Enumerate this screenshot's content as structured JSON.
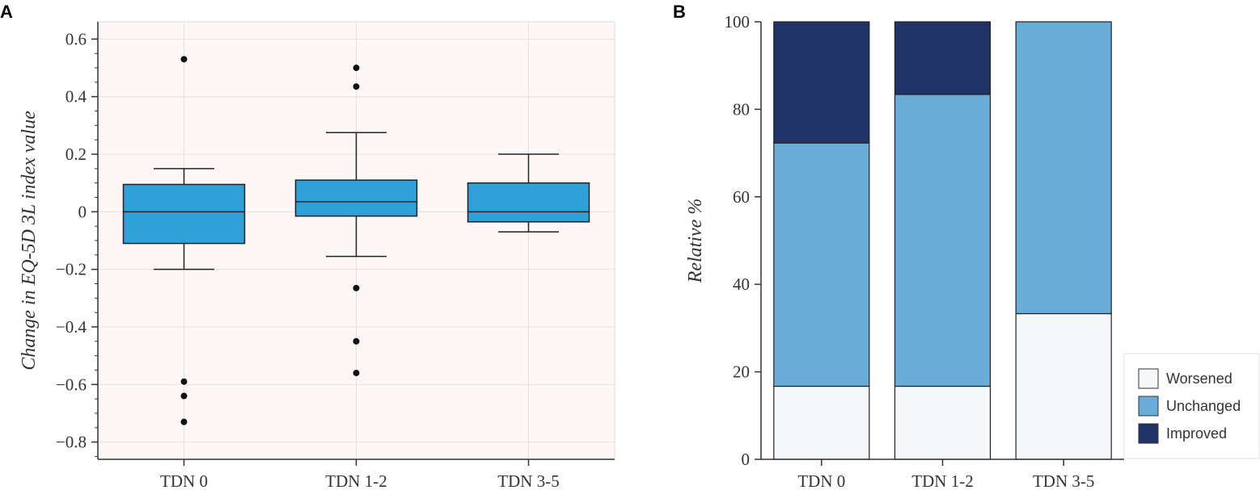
{
  "chart_data": [
    {
      "panel": "A",
      "type": "box",
      "title": "",
      "xlabel": "",
      "ylabel": "Change in EQ-5D 3L index value",
      "ylim": [
        -0.86,
        0.66
      ],
      "yticks": [
        0.6,
        0.4,
        0.2,
        0,
        -0.2,
        -0.4,
        -0.6,
        -0.8
      ],
      "ytick_labels": [
        "0.6",
        "0.4",
        "0.2",
        "0",
        "−0.2",
        "−0.4",
        "−0.6",
        "−0.8"
      ],
      "categories": [
        "TDN 0",
        "TDN 1-2",
        "TDN 3-5"
      ],
      "box_color": "#2fa0d8",
      "plot_bg": "#fdf7f7",
      "boxes": [
        {
          "category": "TDN 0",
          "whisker_low": -0.2,
          "q1": -0.11,
          "median": 0.0,
          "q3": 0.095,
          "whisker_high": 0.15,
          "outliers": [
            0.53,
            -0.59,
            -0.64,
            -0.73
          ]
        },
        {
          "category": "TDN 1-2",
          "whisker_low": -0.155,
          "q1": -0.015,
          "median": 0.035,
          "q3": 0.11,
          "whisker_high": 0.275,
          "outliers": [
            0.5,
            0.435,
            -0.265,
            -0.45,
            -0.56
          ]
        },
        {
          "category": "TDN 3-5",
          "whisker_low": -0.07,
          "q1": -0.035,
          "median": 0.0,
          "q3": 0.1,
          "whisker_high": 0.2,
          "outliers": []
        }
      ]
    },
    {
      "panel": "B",
      "type": "bar",
      "stacked": true,
      "title": "",
      "xlabel": "",
      "ylabel": "Relative %",
      "ylim": [
        0,
        100
      ],
      "yticks": [
        0,
        20,
        40,
        60,
        80,
        100
      ],
      "ytick_labels": [
        "0",
        "20",
        "40",
        "60",
        "80",
        "100"
      ],
      "categories": [
        "TDN 0",
        "TDN 1-2",
        "TDN 3-5"
      ],
      "series": [
        {
          "name": "Worsened",
          "color": "#f5f7fa",
          "values": [
            16.7,
            16.7,
            33.3
          ]
        },
        {
          "name": "Unchanged",
          "color": "#69acd7",
          "values": [
            55.6,
            66.7,
            66.7
          ]
        },
        {
          "name": "Improved",
          "color": "#1f3367",
          "values": [
            27.7,
            16.6,
            0
          ]
        }
      ],
      "legend": {
        "position": "bottom-right",
        "entries": [
          "Worsened",
          "Unchanged",
          "Improved"
        ]
      }
    }
  ]
}
